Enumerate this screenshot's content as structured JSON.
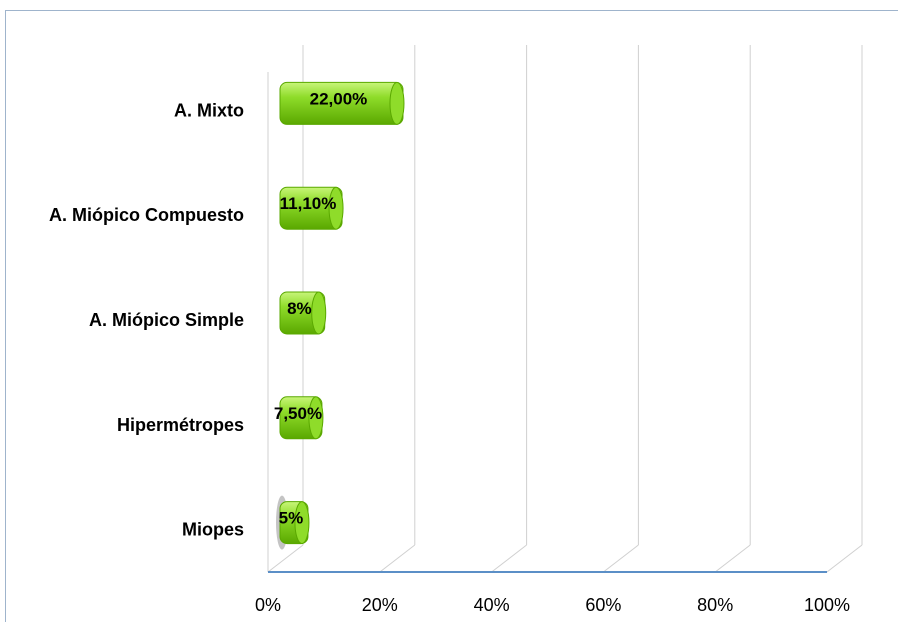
{
  "chart_data": {
    "type": "bar",
    "orientation": "horizontal",
    "style": "3d-cylinder",
    "categories": [
      "A. Mixto",
      "A. Miópico Compuesto",
      "A. Miópico Simple",
      "Hipermétropes",
      "Miopes"
    ],
    "values": [
      22.0,
      11.1,
      8.0,
      7.5,
      5.0
    ],
    "data_labels": [
      "22,00%",
      "11,10%",
      "8%",
      "7,50%",
      "5%"
    ],
    "x_ticks": [
      "0%",
      "20%",
      "40%",
      "60%",
      "80%",
      "100%"
    ],
    "xlim": [
      0,
      100
    ],
    "grid": true,
    "legend": "none",
    "colors": {
      "bar_light": "#c8f57a",
      "bar_mid": "#8fdc2a",
      "bar_dark": "#5aa800",
      "gridline": "#d0d0d0",
      "axis": "#5b8fc7"
    }
  }
}
